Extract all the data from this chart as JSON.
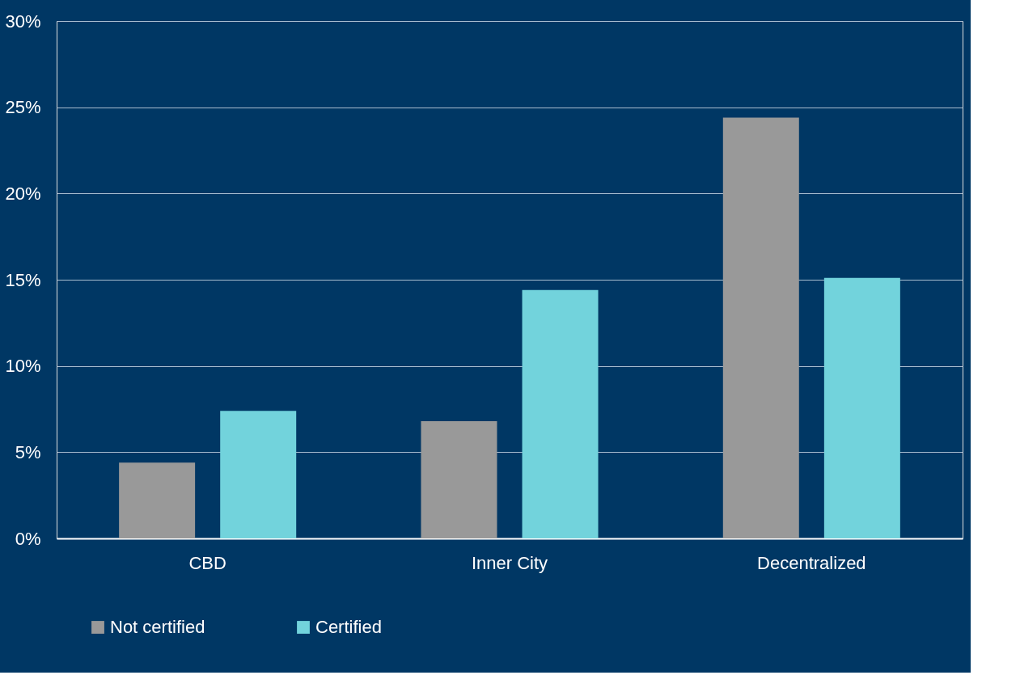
{
  "chart_data": {
    "type": "bar",
    "categories": [
      "CBD",
      "Inner City",
      "Decentralized"
    ],
    "series": [
      {
        "name": "Not certified",
        "color": "#999999",
        "values": [
          4.4,
          6.8,
          24.4
        ]
      },
      {
        "name": "Certified",
        "color": "#72d3dc",
        "values": [
          7.4,
          14.4,
          15.1
        ]
      }
    ],
    "ylim": [
      0,
      30
    ],
    "yticks": [
      {
        "value": 0,
        "label": "0%"
      },
      {
        "value": 5,
        "label": "5%"
      },
      {
        "value": 10,
        "label": "10%"
      },
      {
        "value": 15,
        "label": "15%"
      },
      {
        "value": 20,
        "label": "20%"
      },
      {
        "value": 25,
        "label": "25%"
      },
      {
        "value": 30,
        "label": "30%"
      }
    ],
    "grid": "y",
    "legend": "bottom"
  }
}
